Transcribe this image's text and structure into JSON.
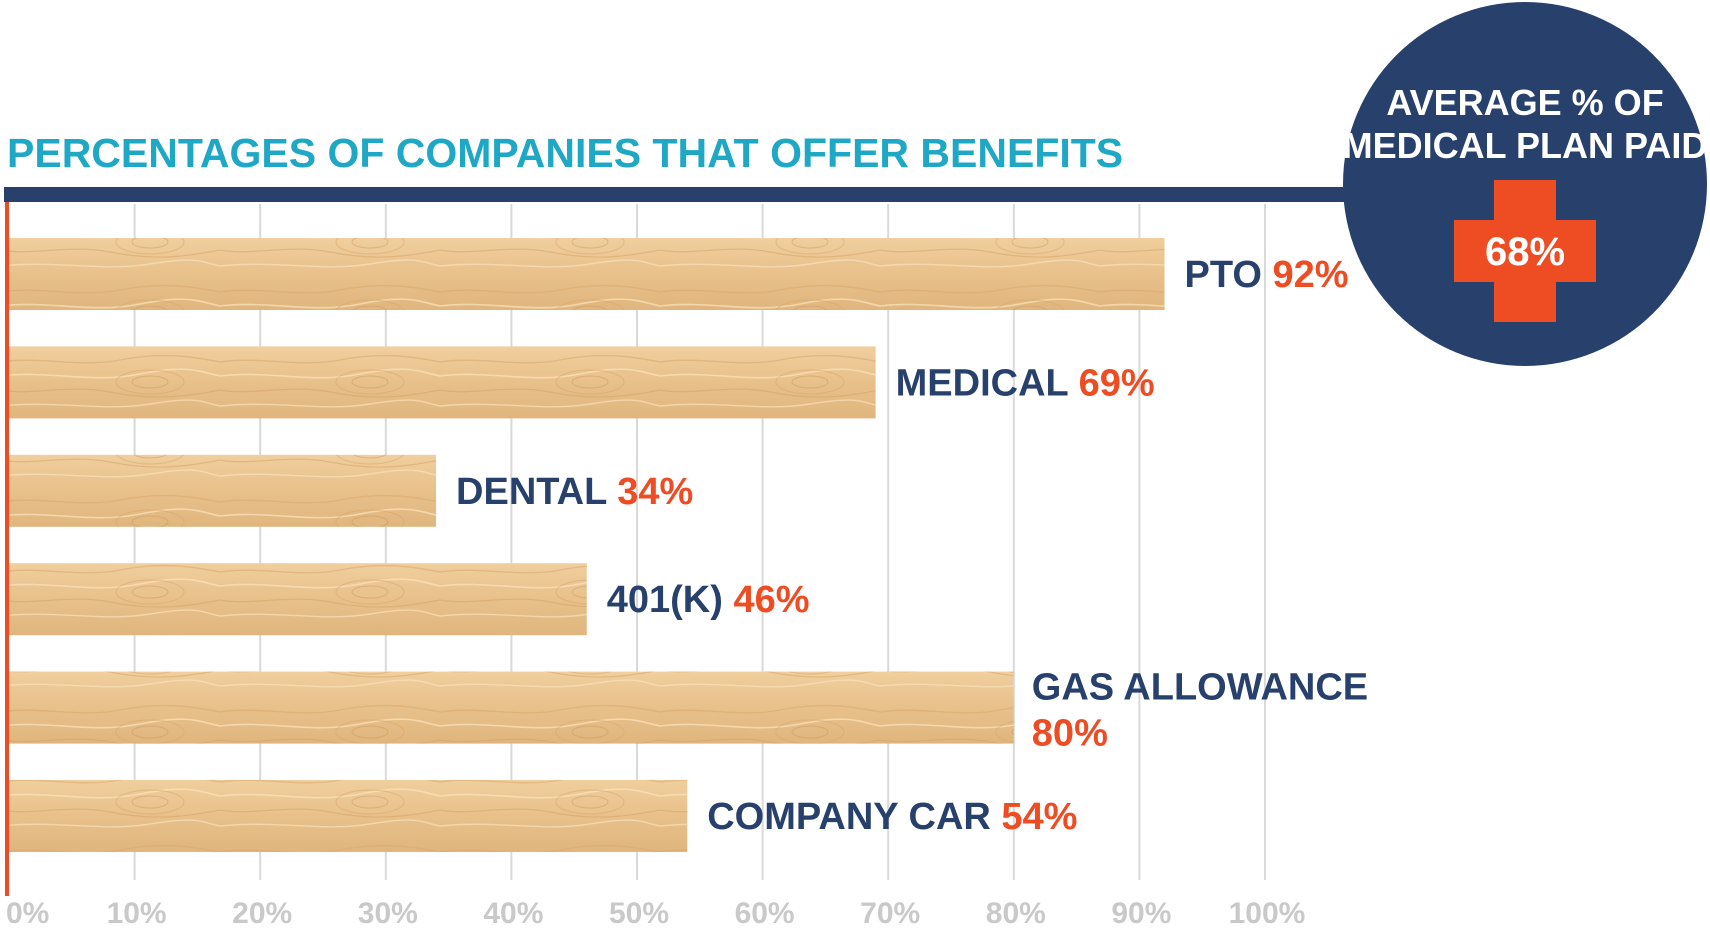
{
  "chart_data": {
    "type": "bar",
    "orientation": "horizontal",
    "title": "PERCENTAGES OF COMPANIES THAT OFFER BENEFITS",
    "categories": [
      "PTO",
      "MEDICAL",
      "DENTAL",
      "401(K)",
      "GAS ALLOWANCE",
      "COMPANY CAR"
    ],
    "values": [
      92,
      69,
      34,
      46,
      80,
      54
    ],
    "value_labels": [
      "92%",
      "69%",
      "34%",
      "46%",
      "80%",
      "54%"
    ],
    "xlim": [
      0,
      100
    ],
    "x_ticks": [
      "0%",
      "10%",
      "20%",
      "30%",
      "40%",
      "50%",
      "60%",
      "70%",
      "80%",
      "90%",
      "100%"
    ],
    "grid": true,
    "colors": {
      "title": "#1ea8c5",
      "rule": "#28406c",
      "axis": "#ee4c23",
      "grid": "#d9d9d9",
      "category_text": "#28406c",
      "value_text": "#ee4c23",
      "bar_wood": "#e9c48f"
    }
  },
  "badge": {
    "title_lines": [
      "AVERAGE % OF",
      "MEDICAL PLAN PAID"
    ],
    "value": "68%",
    "icon": "medical-cross-icon",
    "circle_color": "#28406c",
    "cross_color": "#ee4c23"
  }
}
